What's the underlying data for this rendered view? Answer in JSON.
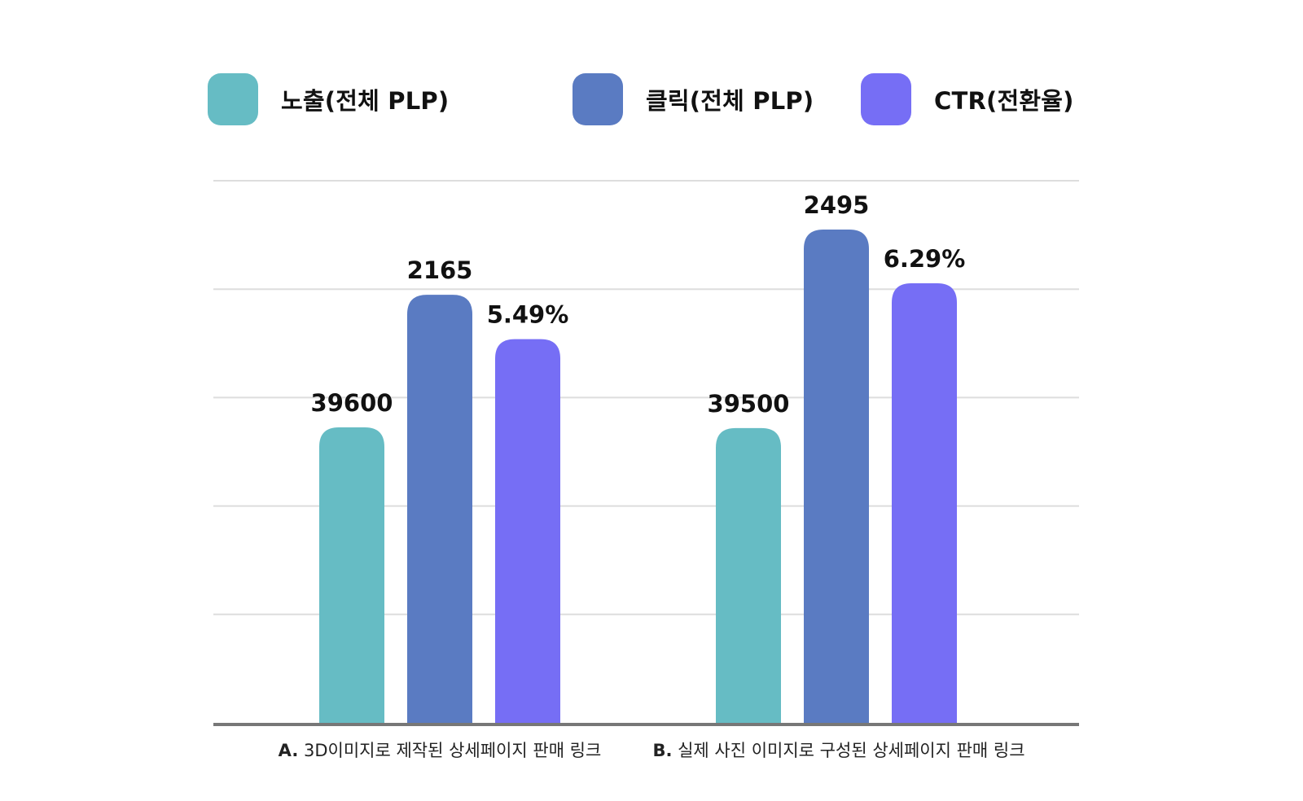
{
  "colors": {
    "impressions": "#66BCC4",
    "clicks": "#5A7BC2",
    "ctr": "#766EF5",
    "grid": "#DDDDDD",
    "axis": "#777777"
  },
  "legend": [
    {
      "label": "노출(전체 PLP)",
      "color_key": "impressions"
    },
    {
      "label": "클릭(전체 PLP)",
      "color_key": "clicks"
    },
    {
      "label": "CTR(전환율)",
      "color_key": "ctr"
    }
  ],
  "categories": [
    {
      "prefix": "A.",
      "text": " 3D이미지로 제작된 상세페이지 판매 링크"
    },
    {
      "prefix": "B.",
      "text": " 실제 사진 이미지로 구성된 상세페이지 판매 링크"
    }
  ],
  "chart_data": {
    "type": "bar",
    "categories": [
      "A. 3D이미지로 제작된 상세페이지 판매 링크",
      "B. 실제 사진 이미지로 구성된 상세페이지 판매 링크"
    ],
    "series": [
      {
        "name": "노출(전체 PLP)",
        "values": [
          39600,
          39500
        ],
        "labels": [
          "39600",
          "39500"
        ],
        "color_key": "impressions"
      },
      {
        "name": "클릭(전체 PLP)",
        "values": [
          2165,
          2495
        ],
        "labels": [
          "2165",
          "2495"
        ],
        "color_key": "clicks"
      },
      {
        "name": "CTR(전환율)",
        "values": [
          5.49,
          6.29
        ],
        "labels": [
          "5.49%",
          "6.29%"
        ],
        "color_key": "ctr"
      }
    ],
    "gridlines": 5,
    "grid": true,
    "legend_position": "top",
    "title": "",
    "xlabel": "",
    "ylabel": ""
  }
}
